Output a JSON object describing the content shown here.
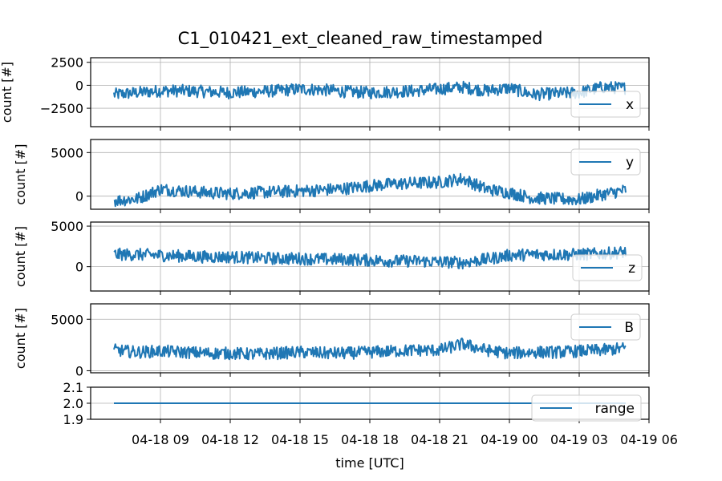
{
  "chart_data": {
    "type": "line",
    "title": "C1_010421_ext_cleaned_raw_timestamped",
    "xlabel": "time [UTC]",
    "x_tick_labels": [
      "04-18 09",
      "04-18 12",
      "04-18 15",
      "04-18 18",
      "04-18 21",
      "04-19 00",
      "04-19 03",
      "04-19 06"
    ],
    "x_start": "04-18 07",
    "x_end": "04-19 05",
    "x_range": [
      "04-18 06",
      "04-19 06"
    ],
    "grid": true,
    "legend_placement": "right",
    "series_color": "#1f77b4",
    "panels": [
      {
        "name": "x",
        "ylabel": "count [#]",
        "ylim": [
          -4500,
          3000
        ],
        "yticks": [
          2500,
          0,
          -2500
        ],
        "ytick_labels": [
          "2500",
          "0",
          "−2500"
        ],
        "x": [
          "04-18 07",
          "04-18 08",
          "04-18 09",
          "04-18 10",
          "04-18 11",
          "04-18 12",
          "04-18 13",
          "04-18 14",
          "04-18 15",
          "04-18 16",
          "04-18 17",
          "04-18 18",
          "04-18 19",
          "04-18 20",
          "04-18 21",
          "04-18 22",
          "04-18 23",
          "04-19 00",
          "04-19 01",
          "04-19 02",
          "04-19 03",
          "04-19 04",
          "04-19 05"
        ],
        "values": [
          -1000,
          -800,
          -600,
          -600,
          -700,
          -800,
          -700,
          -600,
          -400,
          -500,
          -700,
          -800,
          -700,
          -600,
          -400,
          -200,
          -600,
          -300,
          -1000,
          -900,
          -800,
          -200,
          -300
        ]
      },
      {
        "name": "y",
        "ylabel": "count [#]",
        "ylim": [
          -1500,
          6500
        ],
        "yticks": [
          5000,
          0
        ],
        "ytick_labels": [
          "5000",
          "0"
        ],
        "x": [
          "04-18 07",
          "04-18 08",
          "04-18 09",
          "04-18 10",
          "04-18 11",
          "04-18 12",
          "04-18 13",
          "04-18 14",
          "04-18 15",
          "04-18 16",
          "04-18 17",
          "04-18 18",
          "04-18 19",
          "04-18 20",
          "04-18 21",
          "04-18 22",
          "04-18 23",
          "04-19 00",
          "04-19 01",
          "04-19 02",
          "04-19 03",
          "04-19 04",
          "04-19 05"
        ],
        "values": [
          -500,
          -300,
          800,
          600,
          400,
          300,
          400,
          500,
          600,
          700,
          900,
          1200,
          1400,
          1500,
          1600,
          2000,
          800,
          400,
          -200,
          -300,
          -400,
          200,
          700
        ]
      },
      {
        "name": "z",
        "ylabel": "count [#]",
        "ylim": [
          -3000,
          5500
        ],
        "yticks": [
          5000,
          0
        ],
        "ytick_labels": [
          "5000",
          "0"
        ],
        "x": [
          "04-18 07",
          "04-18 08",
          "04-18 09",
          "04-18 10",
          "04-18 11",
          "04-18 12",
          "04-18 13",
          "04-18 14",
          "04-18 15",
          "04-18 16",
          "04-18 17",
          "04-18 18",
          "04-18 19",
          "04-18 20",
          "04-18 21",
          "04-18 22",
          "04-18 23",
          "04-19 00",
          "04-19 01",
          "04-19 02",
          "04-19 03",
          "04-19 04",
          "04-19 05"
        ],
        "values": [
          1500,
          1500,
          1400,
          1300,
          1200,
          1200,
          1100,
          1000,
          1000,
          900,
          900,
          800,
          700,
          700,
          600,
          500,
          900,
          1400,
          1500,
          1500,
          1500,
          1600,
          1800
        ]
      },
      {
        "name": "B",
        "ylabel": "count [#]",
        "ylim": [
          -200,
          6500
        ],
        "yticks": [
          5000,
          0
        ],
        "ytick_labels": [
          "5000",
          "0"
        ],
        "x": [
          "04-18 07",
          "04-18 08",
          "04-18 09",
          "04-18 10",
          "04-18 11",
          "04-18 12",
          "04-18 13",
          "04-18 14",
          "04-18 15",
          "04-18 16",
          "04-18 17",
          "04-18 18",
          "04-18 19",
          "04-18 20",
          "04-18 21",
          "04-18 22",
          "04-18 23",
          "04-19 00",
          "04-19 01",
          "04-19 02",
          "04-19 03",
          "04-19 04",
          "04-19 05"
        ],
        "values": [
          2000,
          1800,
          1900,
          1800,
          1700,
          1700,
          1600,
          1700,
          1800,
          1700,
          1700,
          1800,
          1900,
          2000,
          2000,
          2600,
          2000,
          1700,
          1800,
          1800,
          1900,
          2000,
          2200
        ]
      },
      {
        "name": "range",
        "ylabel": "",
        "ylim": [
          1.9,
          2.1
        ],
        "yticks": [
          2.1,
          2.0,
          1.9
        ],
        "ytick_labels": [
          "2.1",
          "2.0",
          "1.9"
        ],
        "x": [
          "04-18 07",
          "04-19 05"
        ],
        "values": [
          2.0,
          2.0
        ]
      }
    ]
  }
}
